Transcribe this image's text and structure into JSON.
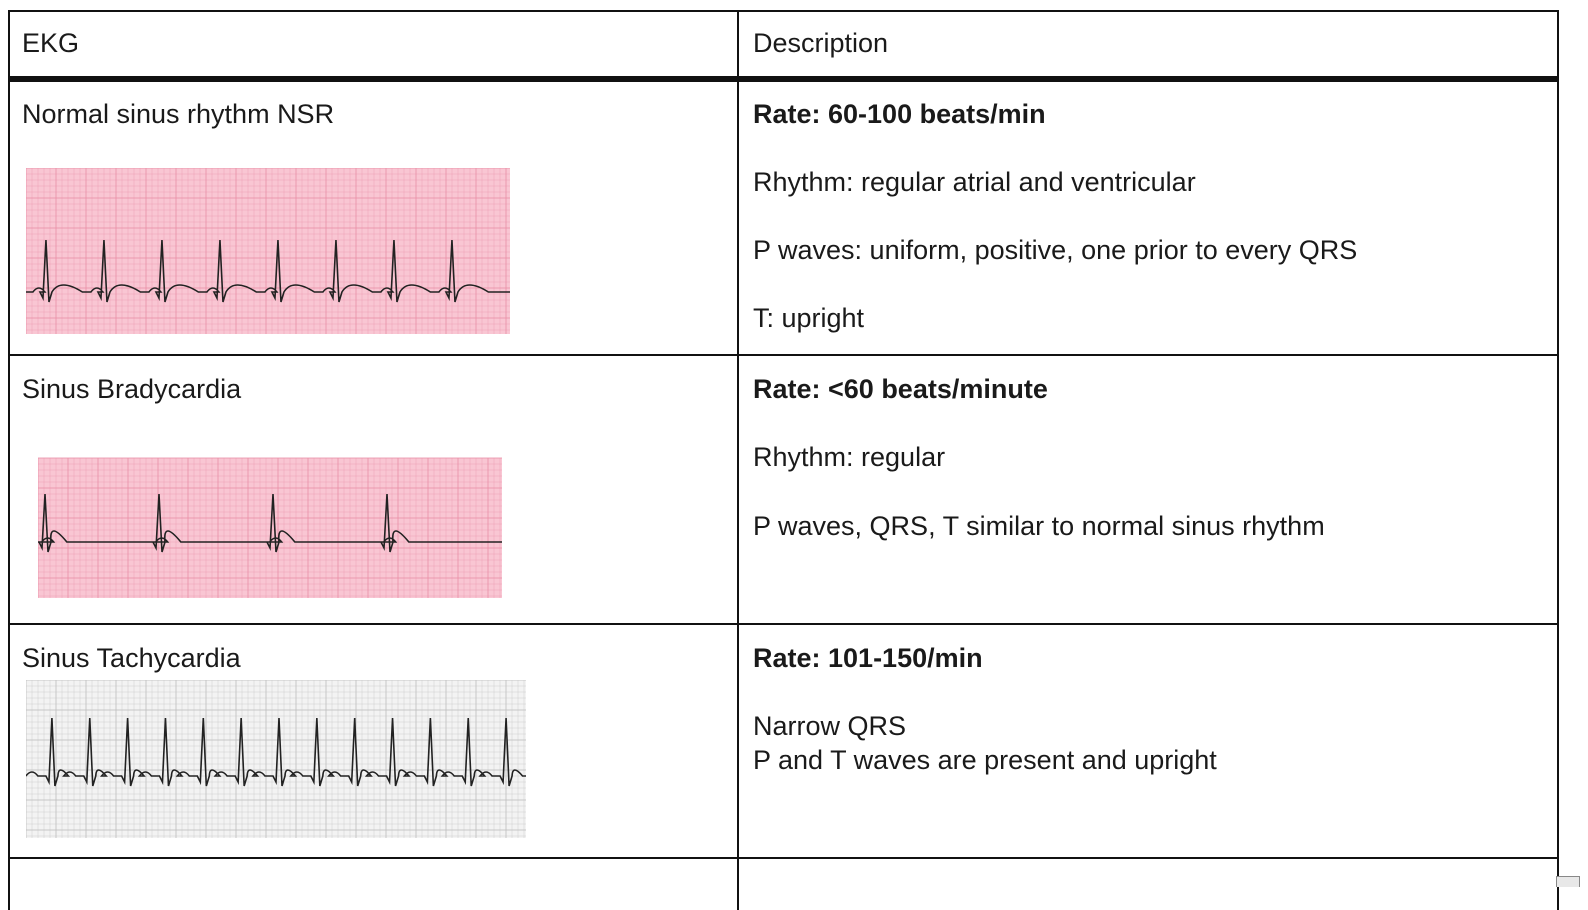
{
  "table": {
    "headers": [
      "EKG",
      "Description"
    ],
    "rows": [
      {
        "name": "Normal sinus rhythm NSR",
        "rate": "Rate: 60-100 beats/min",
        "lines": [
          "Rhythm: regular atrial and ventricular",
          "P waves: uniform, positive, one prior to every QRS",
          "T: upright"
        ]
      },
      {
        "name": "Sinus Bradycardia",
        "rate": "Rate: <60 beats/minute",
        "lines": [
          "Rhythm: regular",
          "P waves, QRS, T similar to normal sinus rhythm"
        ]
      },
      {
        "name": "Sinus Tachycardia",
        "rate": "Rate: 101-150/min",
        "lines": [
          "Narrow QRS",
          "P and T waves are present and upright"
        ]
      }
    ]
  },
  "strips": [
    {
      "beats": 8,
      "paper_color": "#f9c6d3",
      "grid_color": "#ea8fa7"
    },
    {
      "beats": 4,
      "paper_color": "#f9c6d3",
      "grid_color": "#ea8fa7"
    },
    {
      "beats": 13,
      "paper_color": "#f3f3f3",
      "grid_color": "#bdbdbd"
    }
  ],
  "icons": {
    "corner": "collapse-handle-icon"
  }
}
